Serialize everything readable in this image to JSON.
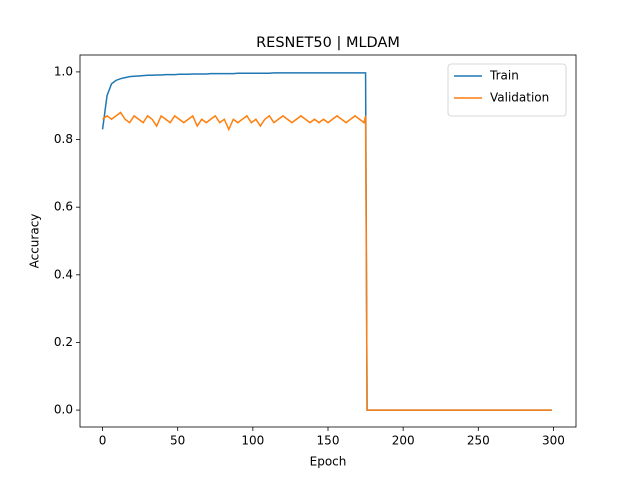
{
  "chart_data": {
    "type": "line",
    "title": "RESNET50 | MLDAM",
    "x_label": "Epoch",
    "y_label": "Accuracy",
    "x": [
      0,
      3,
      6,
      9,
      12,
      15,
      18,
      21,
      24,
      27,
      30,
      33,
      36,
      39,
      42,
      45,
      48,
      51,
      54,
      57,
      60,
      63,
      66,
      69,
      72,
      75,
      78,
      81,
      84,
      87,
      90,
      93,
      96,
      99,
      102,
      105,
      108,
      111,
      114,
      117,
      120,
      123,
      126,
      129,
      132,
      135,
      138,
      141,
      144,
      147,
      150,
      153,
      156,
      159,
      162,
      165,
      168,
      171,
      174,
      175,
      176,
      299
    ],
    "series": [
      {
        "name": "Train",
        "color": "#1f77b4",
        "values": [
          0.83,
          0.93,
          0.965,
          0.975,
          0.98,
          0.983,
          0.986,
          0.987,
          0.988,
          0.989,
          0.99,
          0.99,
          0.991,
          0.991,
          0.992,
          0.992,
          0.992,
          0.993,
          0.993,
          0.993,
          0.994,
          0.994,
          0.994,
          0.994,
          0.995,
          0.995,
          0.995,
          0.995,
          0.995,
          0.995,
          0.996,
          0.996,
          0.996,
          0.996,
          0.996,
          0.996,
          0.996,
          0.996,
          0.997,
          0.997,
          0.997,
          0.997,
          0.997,
          0.997,
          0.997,
          0.997,
          0.997,
          0.997,
          0.997,
          0.997,
          0.997,
          0.997,
          0.997,
          0.997,
          0.997,
          0.997,
          0.997,
          0.997,
          0.997,
          0.997,
          0,
          0
        ]
      },
      {
        "name": "Validation",
        "color": "#ff7f0e",
        "values": [
          0.86,
          0.87,
          0.86,
          0.87,
          0.88,
          0.86,
          0.85,
          0.87,
          0.86,
          0.85,
          0.87,
          0.86,
          0.84,
          0.87,
          0.86,
          0.85,
          0.87,
          0.86,
          0.85,
          0.86,
          0.87,
          0.84,
          0.86,
          0.85,
          0.86,
          0.87,
          0.85,
          0.86,
          0.83,
          0.86,
          0.85,
          0.86,
          0.87,
          0.85,
          0.86,
          0.84,
          0.86,
          0.87,
          0.85,
          0.86,
          0.87,
          0.86,
          0.85,
          0.86,
          0.87,
          0.86,
          0.85,
          0.86,
          0.85,
          0.86,
          0.85,
          0.86,
          0.87,
          0.86,
          0.85,
          0.86,
          0.87,
          0.86,
          0.85,
          0.87,
          0,
          0
        ]
      }
    ],
    "xlim": [
      -15,
      315
    ],
    "ylim": [
      -0.05,
      1.05
    ],
    "xticks": [
      0,
      50,
      100,
      150,
      200,
      250,
      300
    ],
    "yticks": [
      {
        "value": 0,
        "label": "0.0"
      },
      {
        "value": 0.2,
        "label": "0.2"
      },
      {
        "value": 0.4,
        "label": "0.4"
      },
      {
        "value": 0.6,
        "label": "0.6"
      },
      {
        "value": 0.8,
        "label": "0.8"
      },
      {
        "value": 1.0,
        "label": "1.0"
      }
    ],
    "legend": "upper right"
  }
}
